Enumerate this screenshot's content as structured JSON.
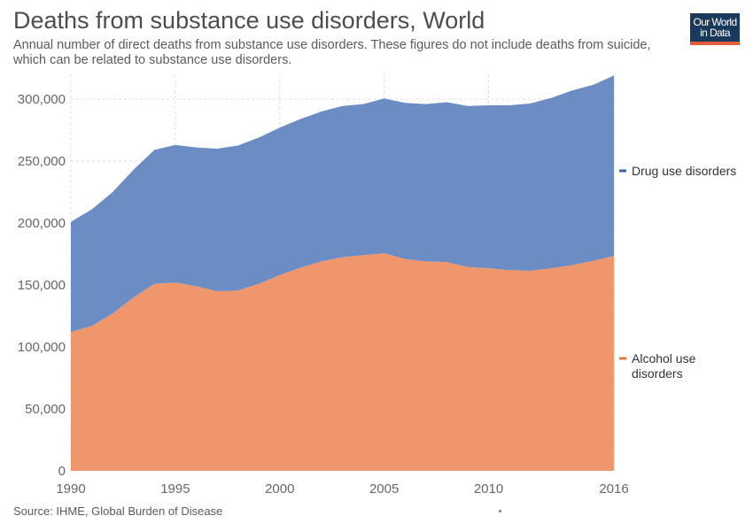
{
  "header": {
    "title": "Deaths from substance use disorders, World",
    "subtitle": "Annual number of direct deaths from substance use disorders. These figures do not include deaths from suicide, which can be related to substance use disorders."
  },
  "logo": {
    "text": "Our World in Data",
    "bg_color": "#1a3a5c",
    "accent_color": "#e15b3c"
  },
  "footer": {
    "source": "Source: IHME, Global Burden of Disease"
  },
  "colors": {
    "drug": "#6b8dc4",
    "alcohol": "#f0966c",
    "drug_legend": "#3c63a8",
    "alcohol_legend": "#e8733c"
  },
  "chart_data": {
    "type": "area",
    "stacked": true,
    "x": [
      1990,
      1991,
      1992,
      1993,
      1994,
      1995,
      1996,
      1997,
      1998,
      1999,
      2000,
      2001,
      2002,
      2003,
      2004,
      2005,
      2006,
      2007,
      2008,
      2009,
      2010,
      2011,
      2012,
      2013,
      2014,
      2015,
      2016
    ],
    "series": [
      {
        "name": "Alcohol use disorders",
        "values": [
          112000,
          117000,
          127000,
          140000,
          151000,
          152000,
          149000,
          145000,
          145500,
          151000,
          158000,
          164000,
          169000,
          172500,
          174000,
          175500,
          171000,
          169000,
          168500,
          164500,
          163500,
          162000,
          161500,
          163500,
          166000,
          169500,
          173500
        ]
      },
      {
        "name": "Drug use disorders",
        "values": [
          89000,
          94000,
          98000,
          103000,
          108000,
          111000,
          112000,
          115000,
          117000,
          118000,
          119000,
          120000,
          121000,
          122000,
          122000,
          125000,
          126000,
          127000,
          129000,
          130000,
          131500,
          133000,
          135000,
          137500,
          141000,
          142000,
          145500
        ]
      }
    ],
    "xlim": [
      1990,
      2016
    ],
    "ylim": [
      0,
      320000
    ],
    "x_ticks": [
      1990,
      1995,
      2000,
      2005,
      2010,
      2016
    ],
    "y_ticks": [
      0,
      50000,
      100000,
      150000,
      200000,
      250000,
      300000
    ],
    "x_tick_labels": [
      "1990",
      "1995",
      "2000",
      "2005",
      "2010",
      "2016"
    ],
    "y_tick_labels": [
      "0",
      "50,000",
      "100,000",
      "150,000",
      "200,000",
      "250,000",
      "300,000"
    ],
    "grid": true,
    "legend_position": "right"
  }
}
